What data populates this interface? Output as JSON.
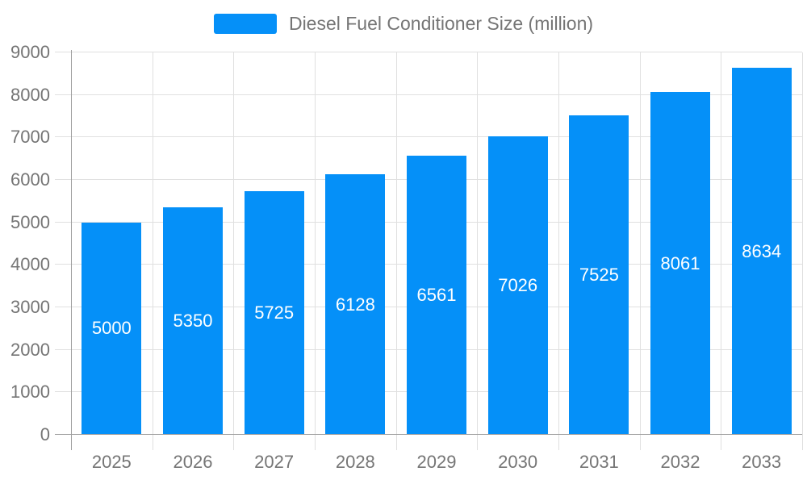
{
  "chart_data": {
    "type": "bar",
    "title": "Diesel Fuel Conditioner Size (million)",
    "categories": [
      "2025",
      "2026",
      "2027",
      "2028",
      "2029",
      "2030",
      "2031",
      "2032",
      "2033"
    ],
    "values": [
      5000,
      5350,
      5725,
      6128,
      6561,
      7026,
      7525,
      8061,
      8634
    ],
    "xlabel": "",
    "ylabel": "",
    "ylim": [
      0,
      9000
    ],
    "y_ticks": [
      0,
      1000,
      2000,
      3000,
      4000,
      5000,
      6000,
      7000,
      8000,
      9000
    ],
    "grid": true,
    "legend_position": "top-center",
    "bar_label_position": "inside-center",
    "colors": {
      "bar": "#0590F8",
      "bar_label": "#FFFFFF",
      "gridline": "#E0E0E0",
      "axis": "#9E9E9E",
      "tick_label": "#757575",
      "legend_text": "#757575",
      "background": "#FFFFFF"
    }
  }
}
